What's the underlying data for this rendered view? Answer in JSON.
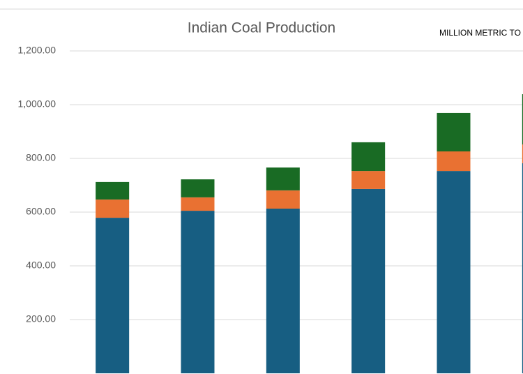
{
  "chart_data": {
    "type": "stacked_bar",
    "title": "Indian Coal Production",
    "annotation": "MILLION METRIC TO",
    "categories": [
      null,
      null,
      null,
      null,
      null,
      null
    ],
    "series": [
      {
        "color": "#175e82",
        "values": [
          579,
          605,
          613,
          686,
          753,
          782
        ]
      },
      {
        "color": "#e97132",
        "values": [
          68,
          50,
          68,
          67,
          73,
          70
        ]
      },
      {
        "color": "#196b24",
        "values": [
          65,
          67,
          85,
          107,
          143,
          187
        ]
      }
    ],
    "ylim": [
      0,
      1200
    ],
    "yticks": [
      {
        "value": 200,
        "label": "200.00"
      },
      {
        "value": 400,
        "label": "400.00"
      },
      {
        "value": 600,
        "label": "600.00"
      },
      {
        "value": 800,
        "label": "800.00"
      },
      {
        "value": 1000,
        "label": "1,000.00"
      },
      {
        "value": 1200,
        "label": "1,200.00"
      }
    ],
    "grid": true
  }
}
